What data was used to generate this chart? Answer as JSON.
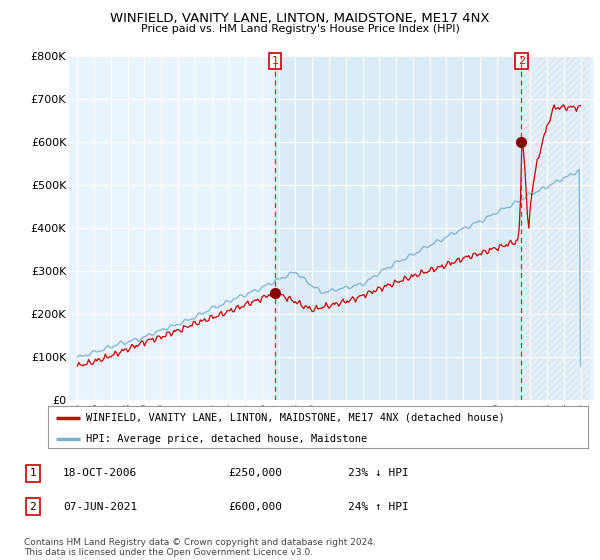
{
  "title": "WINFIELD, VANITY LANE, LINTON, MAIDSTONE, ME17 4NX",
  "subtitle": "Price paid vs. HM Land Registry's House Price Index (HPI)",
  "ylim": [
    0,
    800000
  ],
  "yticks": [
    0,
    100000,
    200000,
    300000,
    400000,
    500000,
    600000,
    700000,
    800000
  ],
  "ytick_labels": [
    "£0",
    "£100K",
    "£200K",
    "£300K",
    "£400K",
    "£500K",
    "£600K",
    "£700K",
    "£800K"
  ],
  "sale1_price": 250000,
  "sale1_date_str": "18-OCT-2006",
  "sale1_pct": "23% ↓ HPI",
  "sale2_price": 600000,
  "sale2_date_str": "07-JUN-2021",
  "sale2_pct": "24% ↑ HPI",
  "line_color_property": "#cc0000",
  "line_color_hpi": "#7ab0d4",
  "background_color": "#ffffff",
  "fill_between_color": "#ddeeff",
  "grid_color": "#c8d8e8",
  "legend_label_property": "WINFIELD, VANITY LANE, LINTON, MAIDSTONE, ME17 4NX (detached house)",
  "legend_label_hpi": "HPI: Average price, detached house, Maidstone",
  "footnote": "Contains HM Land Registry data © Crown copyright and database right 2024.\nThis data is licensed under the Open Government Licence v3.0."
}
